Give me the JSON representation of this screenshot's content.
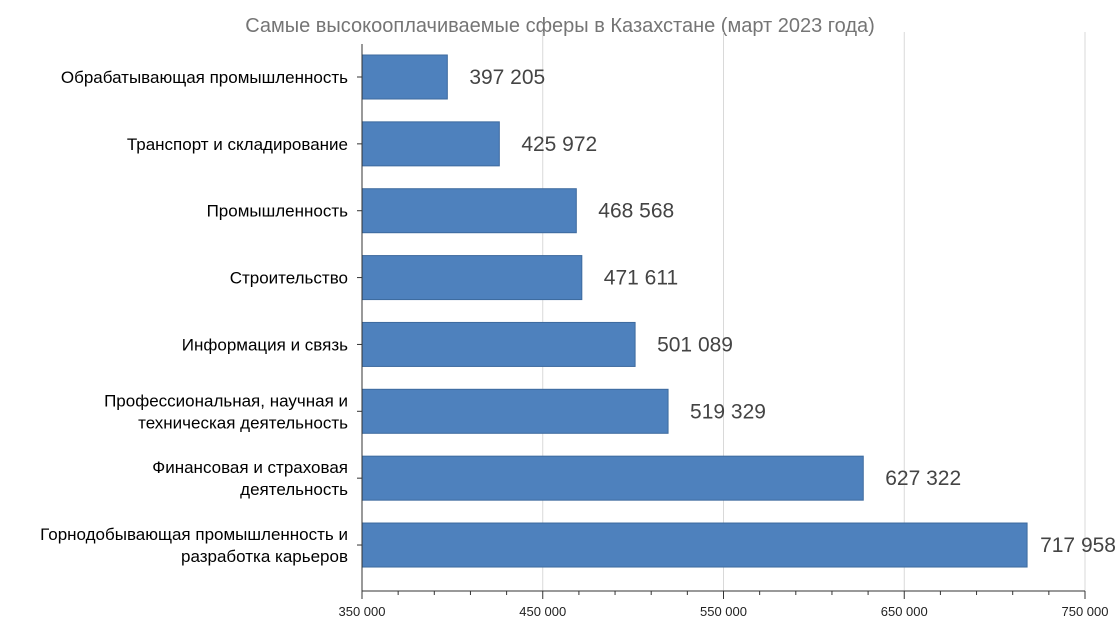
{
  "chart_data": {
    "type": "bar",
    "orientation": "horizontal",
    "title": "Самые высокооплачиваемые сферы в Казахстане (март 2023 года)",
    "xlabel": "",
    "ylabel": "",
    "categories": [
      [
        "Обрабатывающая промышленность"
      ],
      [
        "Транспорт и складирование"
      ],
      [
        "Промышленность"
      ],
      [
        "Строительство"
      ],
      [
        "Информация и связь"
      ],
      [
        "Профессиональная, научная и",
        "техническая деятельность"
      ],
      [
        "Финансовая и страховая",
        "деятельность"
      ],
      [
        "Горнодобывающая промышленность и",
        "разработка карьеров"
      ]
    ],
    "values": [
      397205,
      425972,
      468568,
      471611,
      501089,
      519329,
      627322,
      717958
    ],
    "value_labels": [
      "397 205",
      "425 972",
      "468 568",
      "471 611",
      "501 089",
      "519 329",
      "627 322",
      "717 958"
    ],
    "xlim": [
      350000,
      750000
    ],
    "ticks": [
      350000,
      450000,
      550000,
      650000,
      750000
    ],
    "tick_labels": [
      "350 000",
      "450 000",
      "550 000",
      "650 000",
      "750 000"
    ],
    "grid": true,
    "legend": "none",
    "colors": {
      "bar": "#4e81bd",
      "bar_edge": "#3d6a9e",
      "grid": "#d9d9d9",
      "axis": "#333333"
    }
  }
}
